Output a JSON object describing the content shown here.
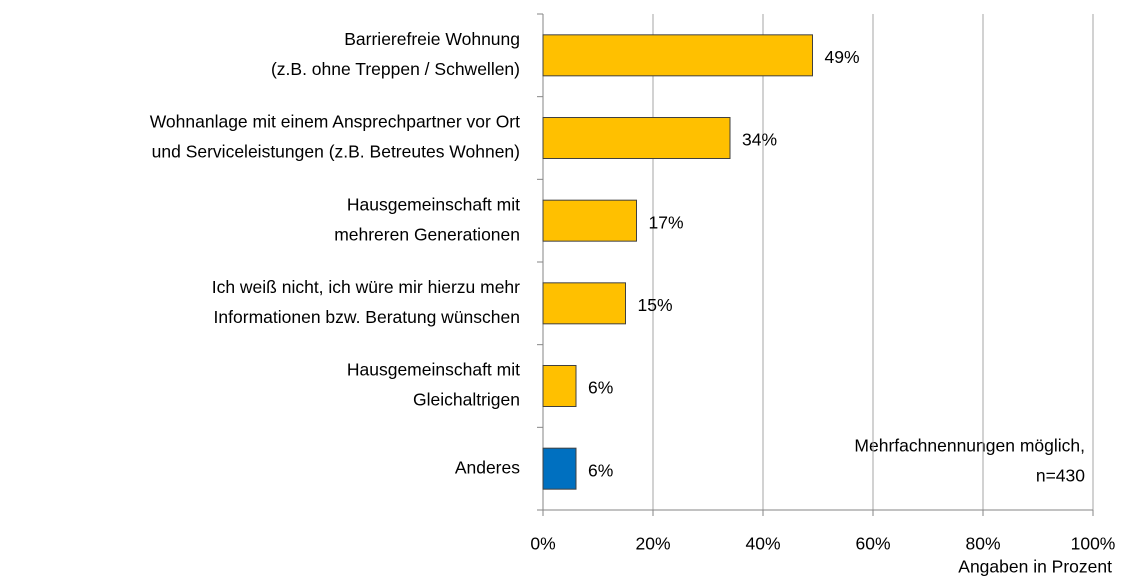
{
  "chart_data": {
    "type": "bar",
    "orientation": "horizontal",
    "categories": [
      [
        "Barrierefreie Wohnung",
        "(z.B. ohne Treppen / Schwellen)"
      ],
      [
        "Wohnanlage mit einem Ansprechpartner vor Ort",
        "und Serviceleistungen (z.B. Betreutes Wohnen)"
      ],
      [
        "Hausgemeinschaft mit",
        "mehreren Generationen"
      ],
      [
        "Ich weiß nicht, ich würe mir hierzu mehr",
        "Informationen bzw. Beratung wünschen"
      ],
      [
        "Hausgemeinschaft mit",
        "Gleichaltrigen"
      ],
      [
        "Anderes"
      ]
    ],
    "values": [
      49,
      34,
      17,
      15,
      6,
      6
    ],
    "value_labels": [
      "49%",
      "34%",
      "17%",
      "15%",
      "6%",
      "6%"
    ],
    "colors": [
      "#ffc000",
      "#ffc000",
      "#ffc000",
      "#ffc000",
      "#ffc000",
      "#0070c0"
    ],
    "xlim": [
      0,
      100
    ],
    "xticks": [
      {
        "value": 0,
        "label": "0%"
      },
      {
        "value": 20,
        "label": "20%"
      },
      {
        "value": 40,
        "label": "40%"
      },
      {
        "value": 60,
        "label": "60%"
      },
      {
        "value": 80,
        "label": "80%"
      },
      {
        "value": 100,
        "label": "100%"
      }
    ],
    "grid": true,
    "xlabel": "Angaben in Prozent",
    "annotation": [
      "Mehrfachnennungen möglich,",
      "n=430"
    ]
  }
}
